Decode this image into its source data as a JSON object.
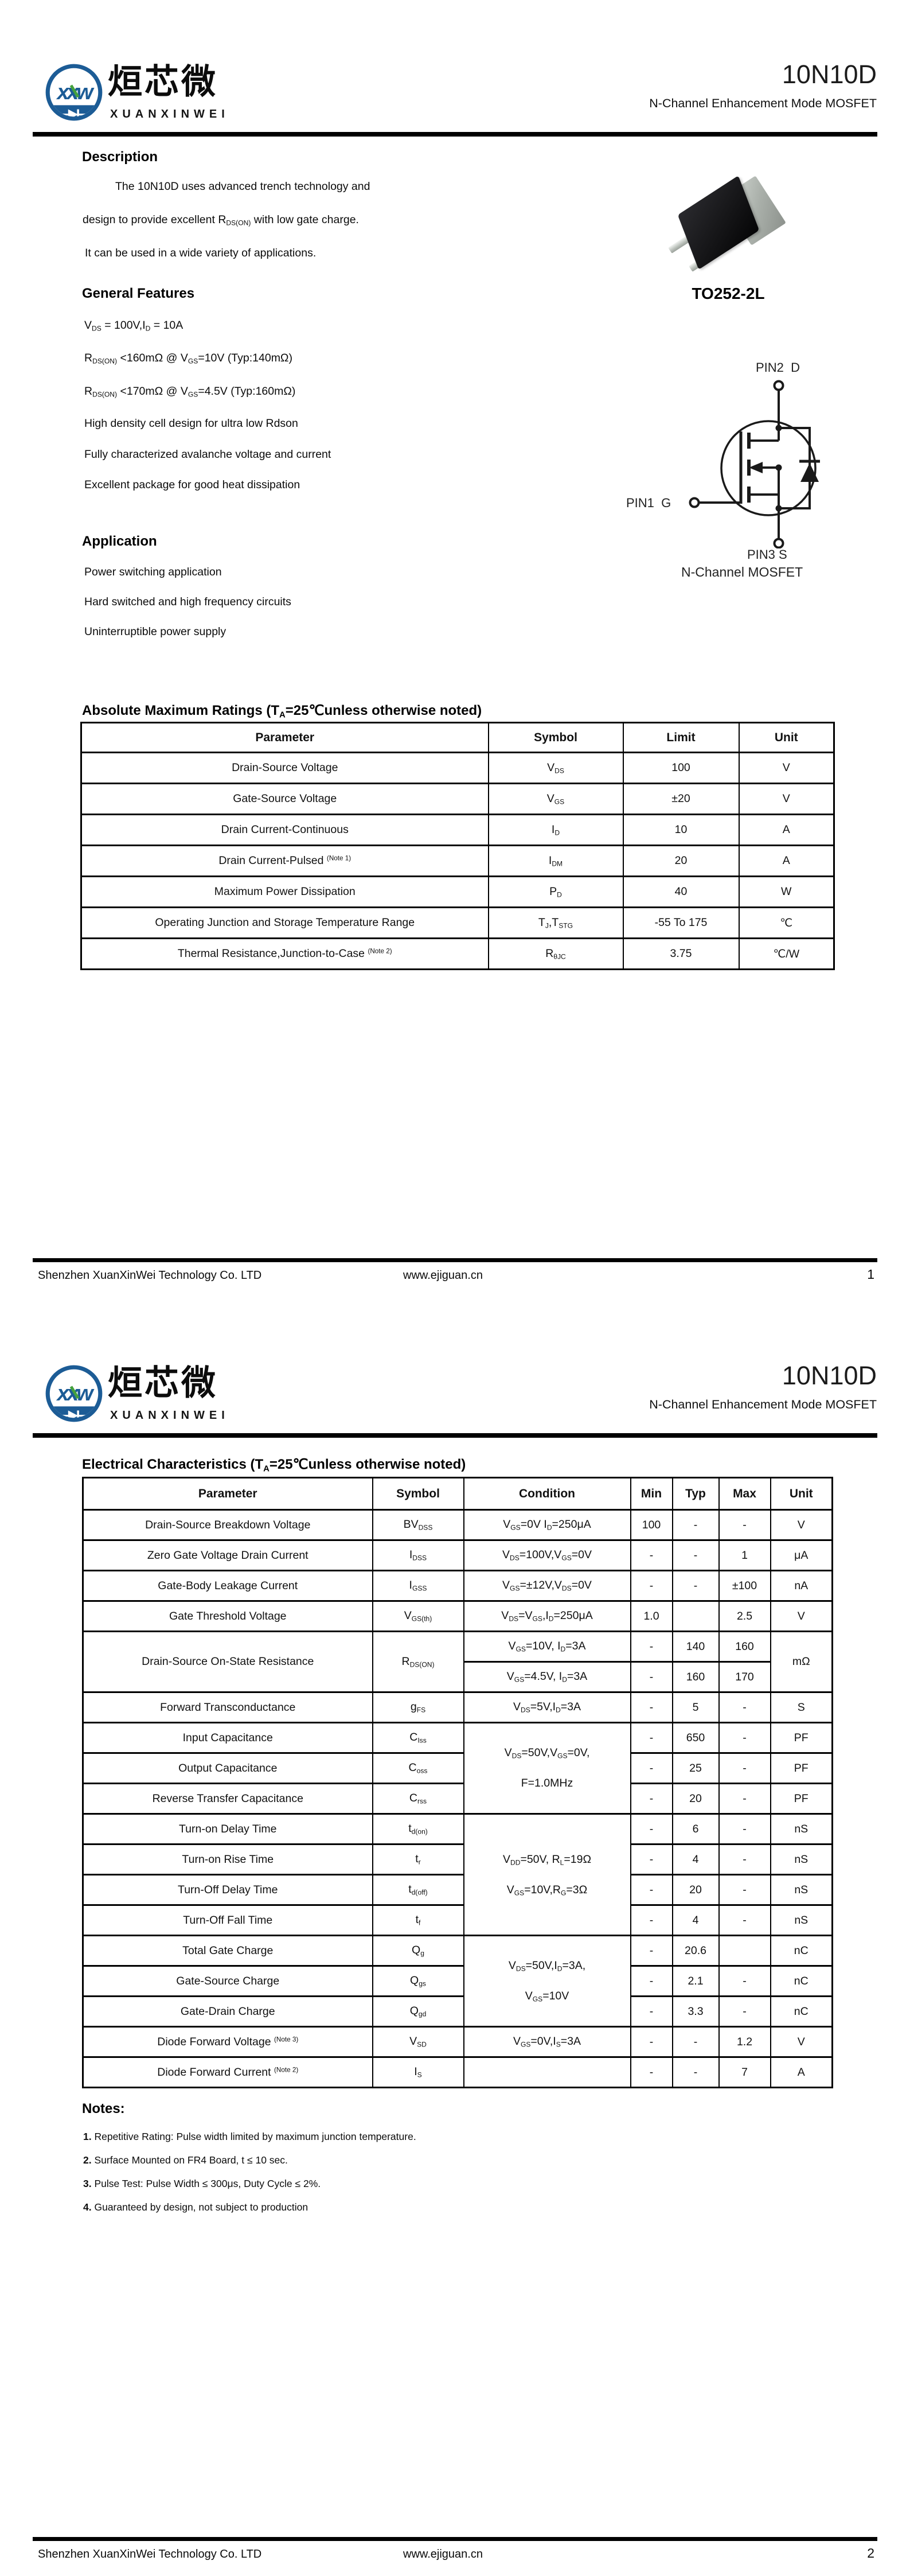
{
  "brand": {
    "logo_letters": "xxw",
    "name_cn": "烜芯微",
    "name_en": "XUANXINWEI",
    "blue": "#1c5c96",
    "green": "#44a13d"
  },
  "product": {
    "part_number": "10N10D",
    "family": "N-Channel Enhancement Mode MOSFET"
  },
  "page1": {
    "description": {
      "title": "Description",
      "line1": "The 10N10D uses advanced trench technology and",
      "line2": "design to provide excellent R~DS(ON)~ with low gate charge.",
      "line3": "It can be used in a wide variety of applications."
    },
    "features": {
      "title": "General Features",
      "items": [
        "V~DS~ = 100V,I~D~ = 10A",
        "R~DS(ON)~ <160mΩ @ V~GS~=10V  (Typ:140mΩ)",
        "R~DS(ON)~ <170mΩ @ V~GS~=4.5V  (Typ:160mΩ)",
        "High density cell design for ultra low Rdson",
        "Fully characterized avalanche voltage and current",
        "Excellent package for good heat dissipation"
      ]
    },
    "application": {
      "title": "Application",
      "items": [
        "Power switching application",
        "Hard switched and high frequency circuits",
        "Uninterruptible power supply"
      ]
    },
    "package": {
      "name": "TO252-2L",
      "pin_top": "PIN2  D",
      "pin_left": "PIN1  G",
      "pin_bottom": "PIN3 S",
      "caption": "N-Channel MOSFET"
    },
    "abs_max": {
      "title": "Absolute Maximum Ratings (T~A~=25℃unless otherwise noted)",
      "headers": [
        "Parameter",
        "Symbol",
        "Limit",
        "Unit"
      ],
      "rows": [
        {
          "param": "Drain-Source Voltage",
          "sym": "V~DS~",
          "limit": "100",
          "unit": "V"
        },
        {
          "param": "Gate-Source Voltage",
          "sym": "V~GS~",
          "limit": "±20",
          "unit": "V"
        },
        {
          "param": "Drain Current-Continuous",
          "sym": "I~D~",
          "limit": "10",
          "unit": "A"
        },
        {
          "param": "Drain Current-Pulsed ^(Note 1)^",
          "sym": "I~DM~",
          "limit": "20",
          "unit": "A"
        },
        {
          "param": "Maximum Power Dissipation",
          "sym": "P~D~",
          "limit": "40",
          "unit": "W"
        },
        {
          "param": "Operating Junction and Storage Temperature Range",
          "sym": "T~J~,T~STG~",
          "limit": "-55 To 175",
          "unit": "℃"
        },
        {
          "param": "Thermal Resistance,Junction-to-Case ^(Note 2)^",
          "sym": "R~θJC~",
          "limit": "3.75",
          "unit": "℃/W"
        }
      ]
    },
    "footer": {
      "company": "Shenzhen XuanXinWei Technology Co. LTD",
      "site": "www.ejiguan.cn",
      "page": "1"
    }
  },
  "page2": {
    "elec": {
      "title": "Electrical Characteristics (T~A~=25℃unless otherwise noted)",
      "headers": [
        "Parameter",
        "Symbol",
        "Condition",
        "Min",
        "Typ",
        "Max",
        "Unit"
      ],
      "rows": [
        {
          "param": "Drain-Source Breakdown Voltage",
          "sym": "BV~DSS~",
          "cond": "V~GS~=0V I~D~=250μA",
          "min": "100",
          "typ": "-",
          "max": "-",
          "unit": "V"
        },
        {
          "param": "Zero Gate Voltage Drain Current",
          "sym": "I~DSS~",
          "cond": "V~DS~=100V,V~GS~=0V",
          "min": "-",
          "typ": "-",
          "max": "1",
          "unit": "μA"
        },
        {
          "param": "Gate-Body Leakage Current",
          "sym": "I~GSS~",
          "cond": "V~GS~=±12V,V~DS~=0V",
          "min": "-",
          "typ": "-",
          "max": "±100",
          "unit": "nA"
        },
        {
          "param": "Gate Threshold Voltage",
          "sym": "V~GS(th)~",
          "cond": "V~DS~=V~GS~,I~D~=250μA",
          "min": "1.0",
          "typ": "",
          "max": "2.5",
          "unit": "V"
        },
        {
          "param": "Drain-Source On-State Resistance",
          "sym": "R~DS(ON)~",
          "cond": "V~GS~=10V, I~D~=3A",
          "min": "-",
          "typ": "140",
          "max": "160",
          "unit": "mΩ"
        },
        {
          "cond": "V~GS~=4.5V, I~D~=3A",
          "min": "-",
          "typ": "160",
          "max": "170"
        },
        {
          "param": "Forward Transconductance",
          "sym": "g~FS~",
          "cond": "V~DS~=5V,I~D~=3A",
          "min": "-",
          "typ": "5",
          "max": "-",
          "unit": "S"
        },
        {
          "param": "Input Capacitance",
          "sym": "C~Iss~",
          "cond": "V~DS~=50V,V~GS~=0V,\nF=1.0MHz",
          "min": "-",
          "typ": "650",
          "max": "-",
          "unit": "PF"
        },
        {
          "param": "Output Capacitance",
          "sym": "C~oss~",
          "min": "-",
          "typ": "25",
          "max": "-",
          "unit": "PF"
        },
        {
          "param": "Reverse Transfer Capacitance",
          "sym": "C~rss~",
          "min": "-",
          "typ": "20",
          "max": "-",
          "unit": "PF"
        },
        {
          "param": "Turn-on Delay Time",
          "sym": "t~d(on)~",
          "cond": "V~DD~=50V, R~L~=19Ω\nV~GS~=10V,R~G~=3Ω",
          "min": "-",
          "typ": "6",
          "max": "-",
          "unit": "nS"
        },
        {
          "param": "Turn-on Rise Time",
          "sym": "t~r~",
          "min": "-",
          "typ": "4",
          "max": "-",
          "unit": "nS"
        },
        {
          "param": "Turn-Off Delay Time",
          "sym": "t~d(off)~",
          "min": "-",
          "typ": "20",
          "max": "-",
          "unit": "nS"
        },
        {
          "param": "Turn-Off Fall Time",
          "sym": "t~f~",
          "min": "-",
          "typ": "4",
          "max": "-",
          "unit": "nS"
        },
        {
          "param": "Total Gate Charge",
          "sym": "Q~g~",
          "cond": "V~DS~=50V,I~D~=3A,\nV~GS~=10V",
          "min": "-",
          "typ": "20.6",
          "max": "",
          "unit": "nC"
        },
        {
          "param": "Gate-Source Charge",
          "sym": "Q~gs~",
          "min": "-",
          "typ": "2.1",
          "max": "-",
          "unit": "nC"
        },
        {
          "param": "Gate-Drain Charge",
          "sym": "Q~gd~",
          "min": "-",
          "typ": "3.3",
          "max": "-",
          "unit": "nC"
        },
        {
          "param": "Diode Forward Voltage ^(Note 3)^",
          "sym": "V~SD~",
          "cond": "V~GS~=0V,I~S~=3A",
          "min": "-",
          "typ": "-",
          "max": "1.2",
          "unit": "V"
        },
        {
          "param": "Diode Forward Current ^(Note 2)^",
          "sym": "I~S~",
          "cond": "",
          "min": "-",
          "typ": "-",
          "max": "7",
          "unit": "A"
        }
      ]
    },
    "notes": {
      "title": "Notes:",
      "items": [
        {
          "num": "1.",
          "text": " Repetitive Rating: Pulse width limited by maximum junction temperature."
        },
        {
          "num": "2.",
          "text": " Surface Mounted on FR4 Board, t ≤ 10 sec."
        },
        {
          "num": "3.",
          "text": " Pulse Test: Pulse Width ≤ 300μs, Duty Cycle ≤ 2%."
        },
        {
          "num": "4.",
          "text": " Guaranteed by design, not subject to production"
        }
      ]
    },
    "footer": {
      "company": "Shenzhen XuanXinWei Technology Co. LTD",
      "site": "www.ejiguan.cn",
      "page": "2"
    }
  }
}
